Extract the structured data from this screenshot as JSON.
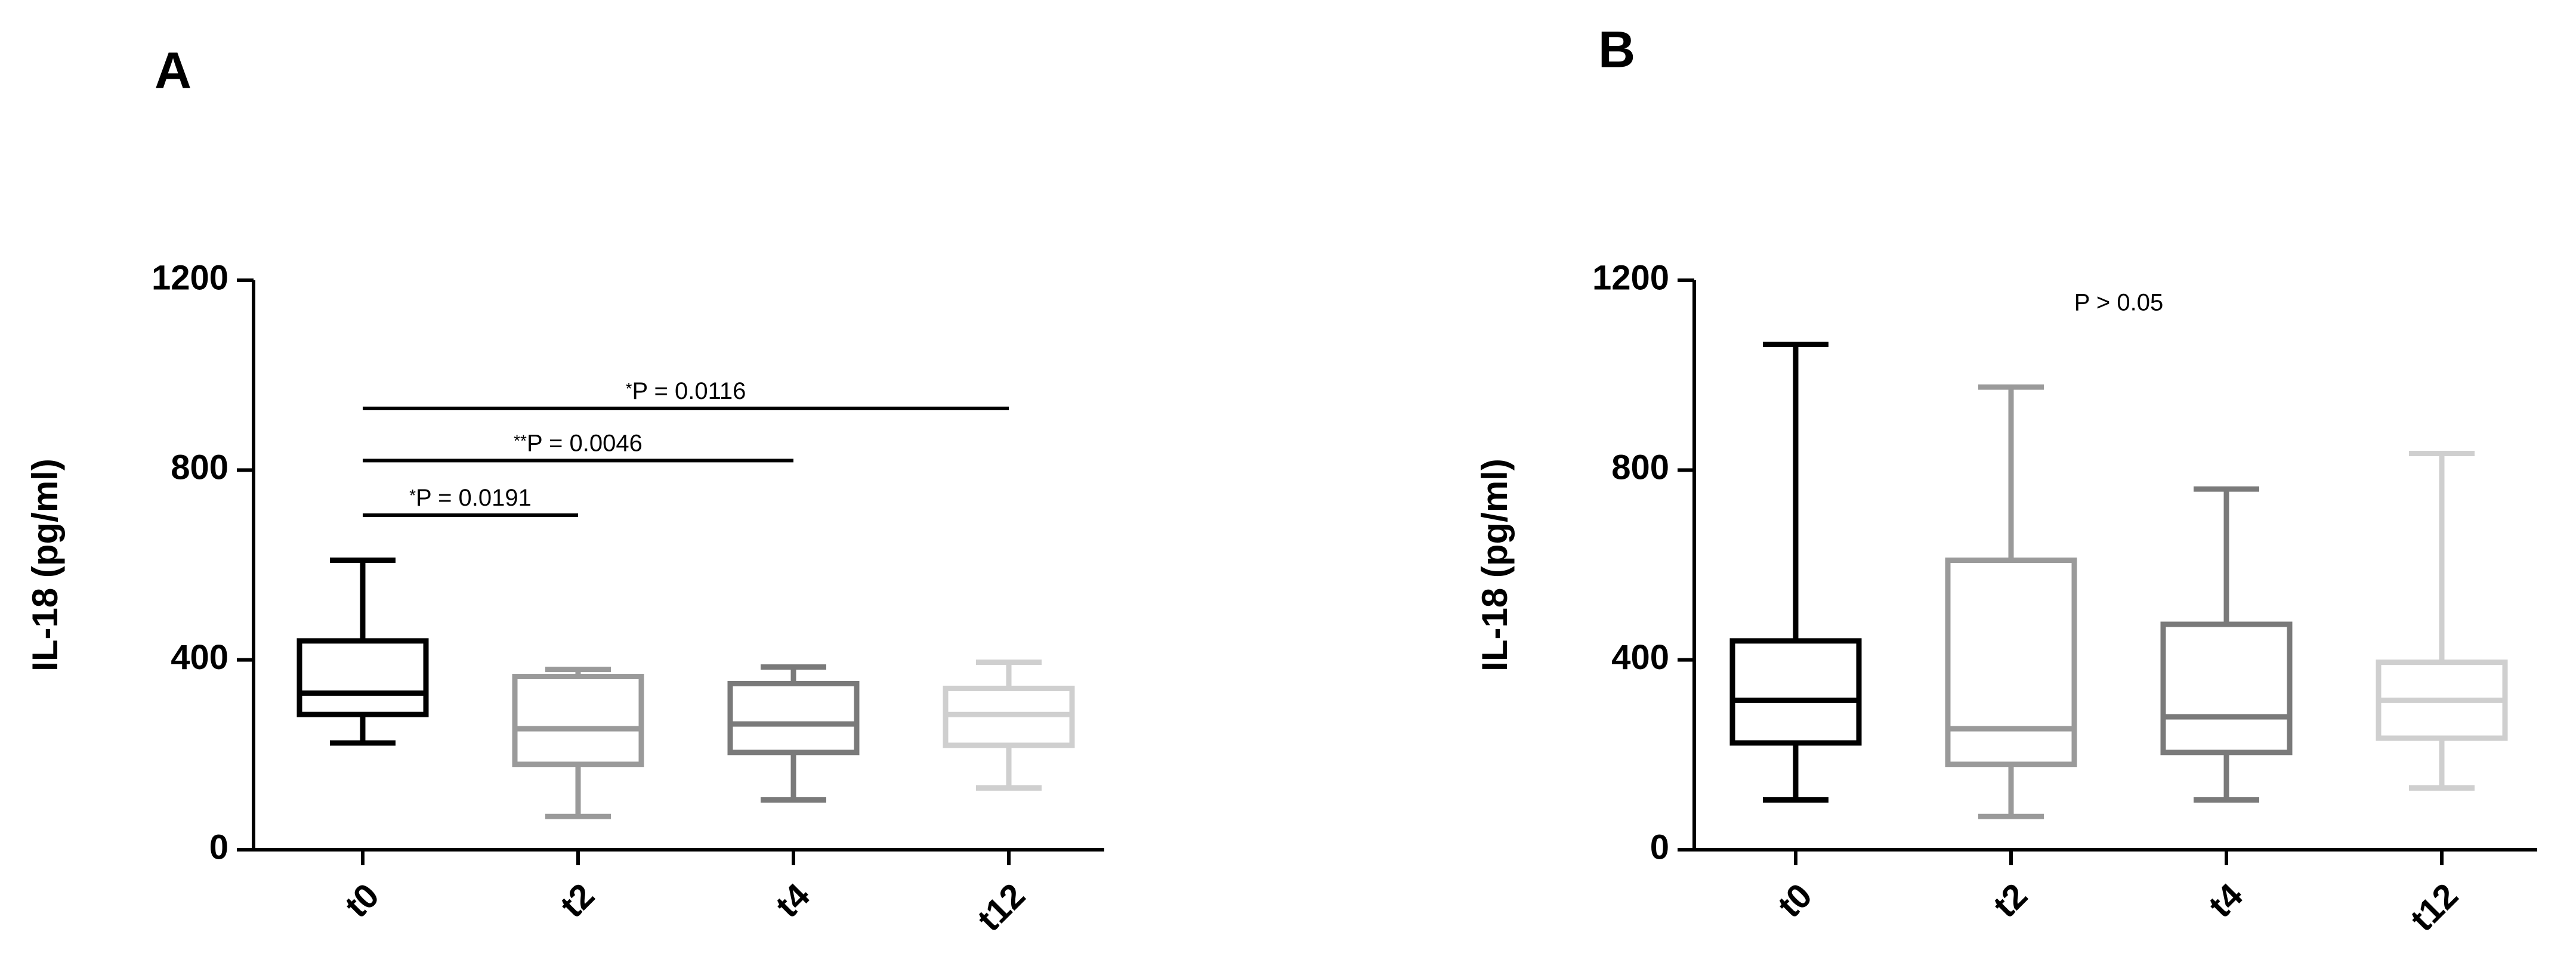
{
  "chart_data": [
    {
      "panel": "A",
      "type": "box",
      "ylabel": "IL-18 (pg/ml)",
      "ylim": [
        0,
        1200
      ],
      "yticks": [
        0,
        400,
        800,
        1200
      ],
      "categories": [
        "t0",
        "t2",
        "t4",
        "t12"
      ],
      "colors": [
        "#000000",
        "#9a9a9a",
        "#7a7a7a",
        "#cfcfcf"
      ],
      "boxes": [
        {
          "min": 225,
          "q1": 285,
          "median": 330,
          "q3": 440,
          "max": 610
        },
        {
          "min": 70,
          "q1": 180,
          "median": 255,
          "q3": 365,
          "max": 380
        },
        {
          "min": 105,
          "q1": 205,
          "median": 265,
          "q3": 350,
          "max": 385
        },
        {
          "min": 130,
          "q1": 220,
          "median": 285,
          "q3": 340,
          "max": 395
        }
      ],
      "comparisons": [
        {
          "from": "t0",
          "to": "t12",
          "y": 930,
          "stars": "*",
          "label": "P = 0.0116"
        },
        {
          "from": "t0",
          "to": "t4",
          "y": 820,
          "stars": "**",
          "label": "P = 0.0046"
        },
        {
          "from": "t0",
          "to": "t2",
          "y": 705,
          "stars": "*",
          "label": "P = 0.0191"
        }
      ]
    },
    {
      "panel": "B",
      "type": "box",
      "ylabel": "IL-18 (pg/ml)",
      "ylim": [
        0,
        1200
      ],
      "yticks": [
        0,
        400,
        800,
        1200
      ],
      "categories": [
        "t0",
        "t2",
        "t4",
        "t12"
      ],
      "colors": [
        "#000000",
        "#9a9a9a",
        "#7a7a7a",
        "#cfcfcf"
      ],
      "boxes": [
        {
          "min": 105,
          "q1": 225,
          "median": 315,
          "q3": 440,
          "max": 1065
        },
        {
          "min": 70,
          "q1": 180,
          "median": 255,
          "q3": 610,
          "max": 975
        },
        {
          "min": 105,
          "q1": 205,
          "median": 280,
          "q3": 475,
          "max": 760
        },
        {
          "min": 130,
          "q1": 235,
          "median": 315,
          "q3": 395,
          "max": 835
        }
      ],
      "annotation": "P > 0.05"
    }
  ]
}
